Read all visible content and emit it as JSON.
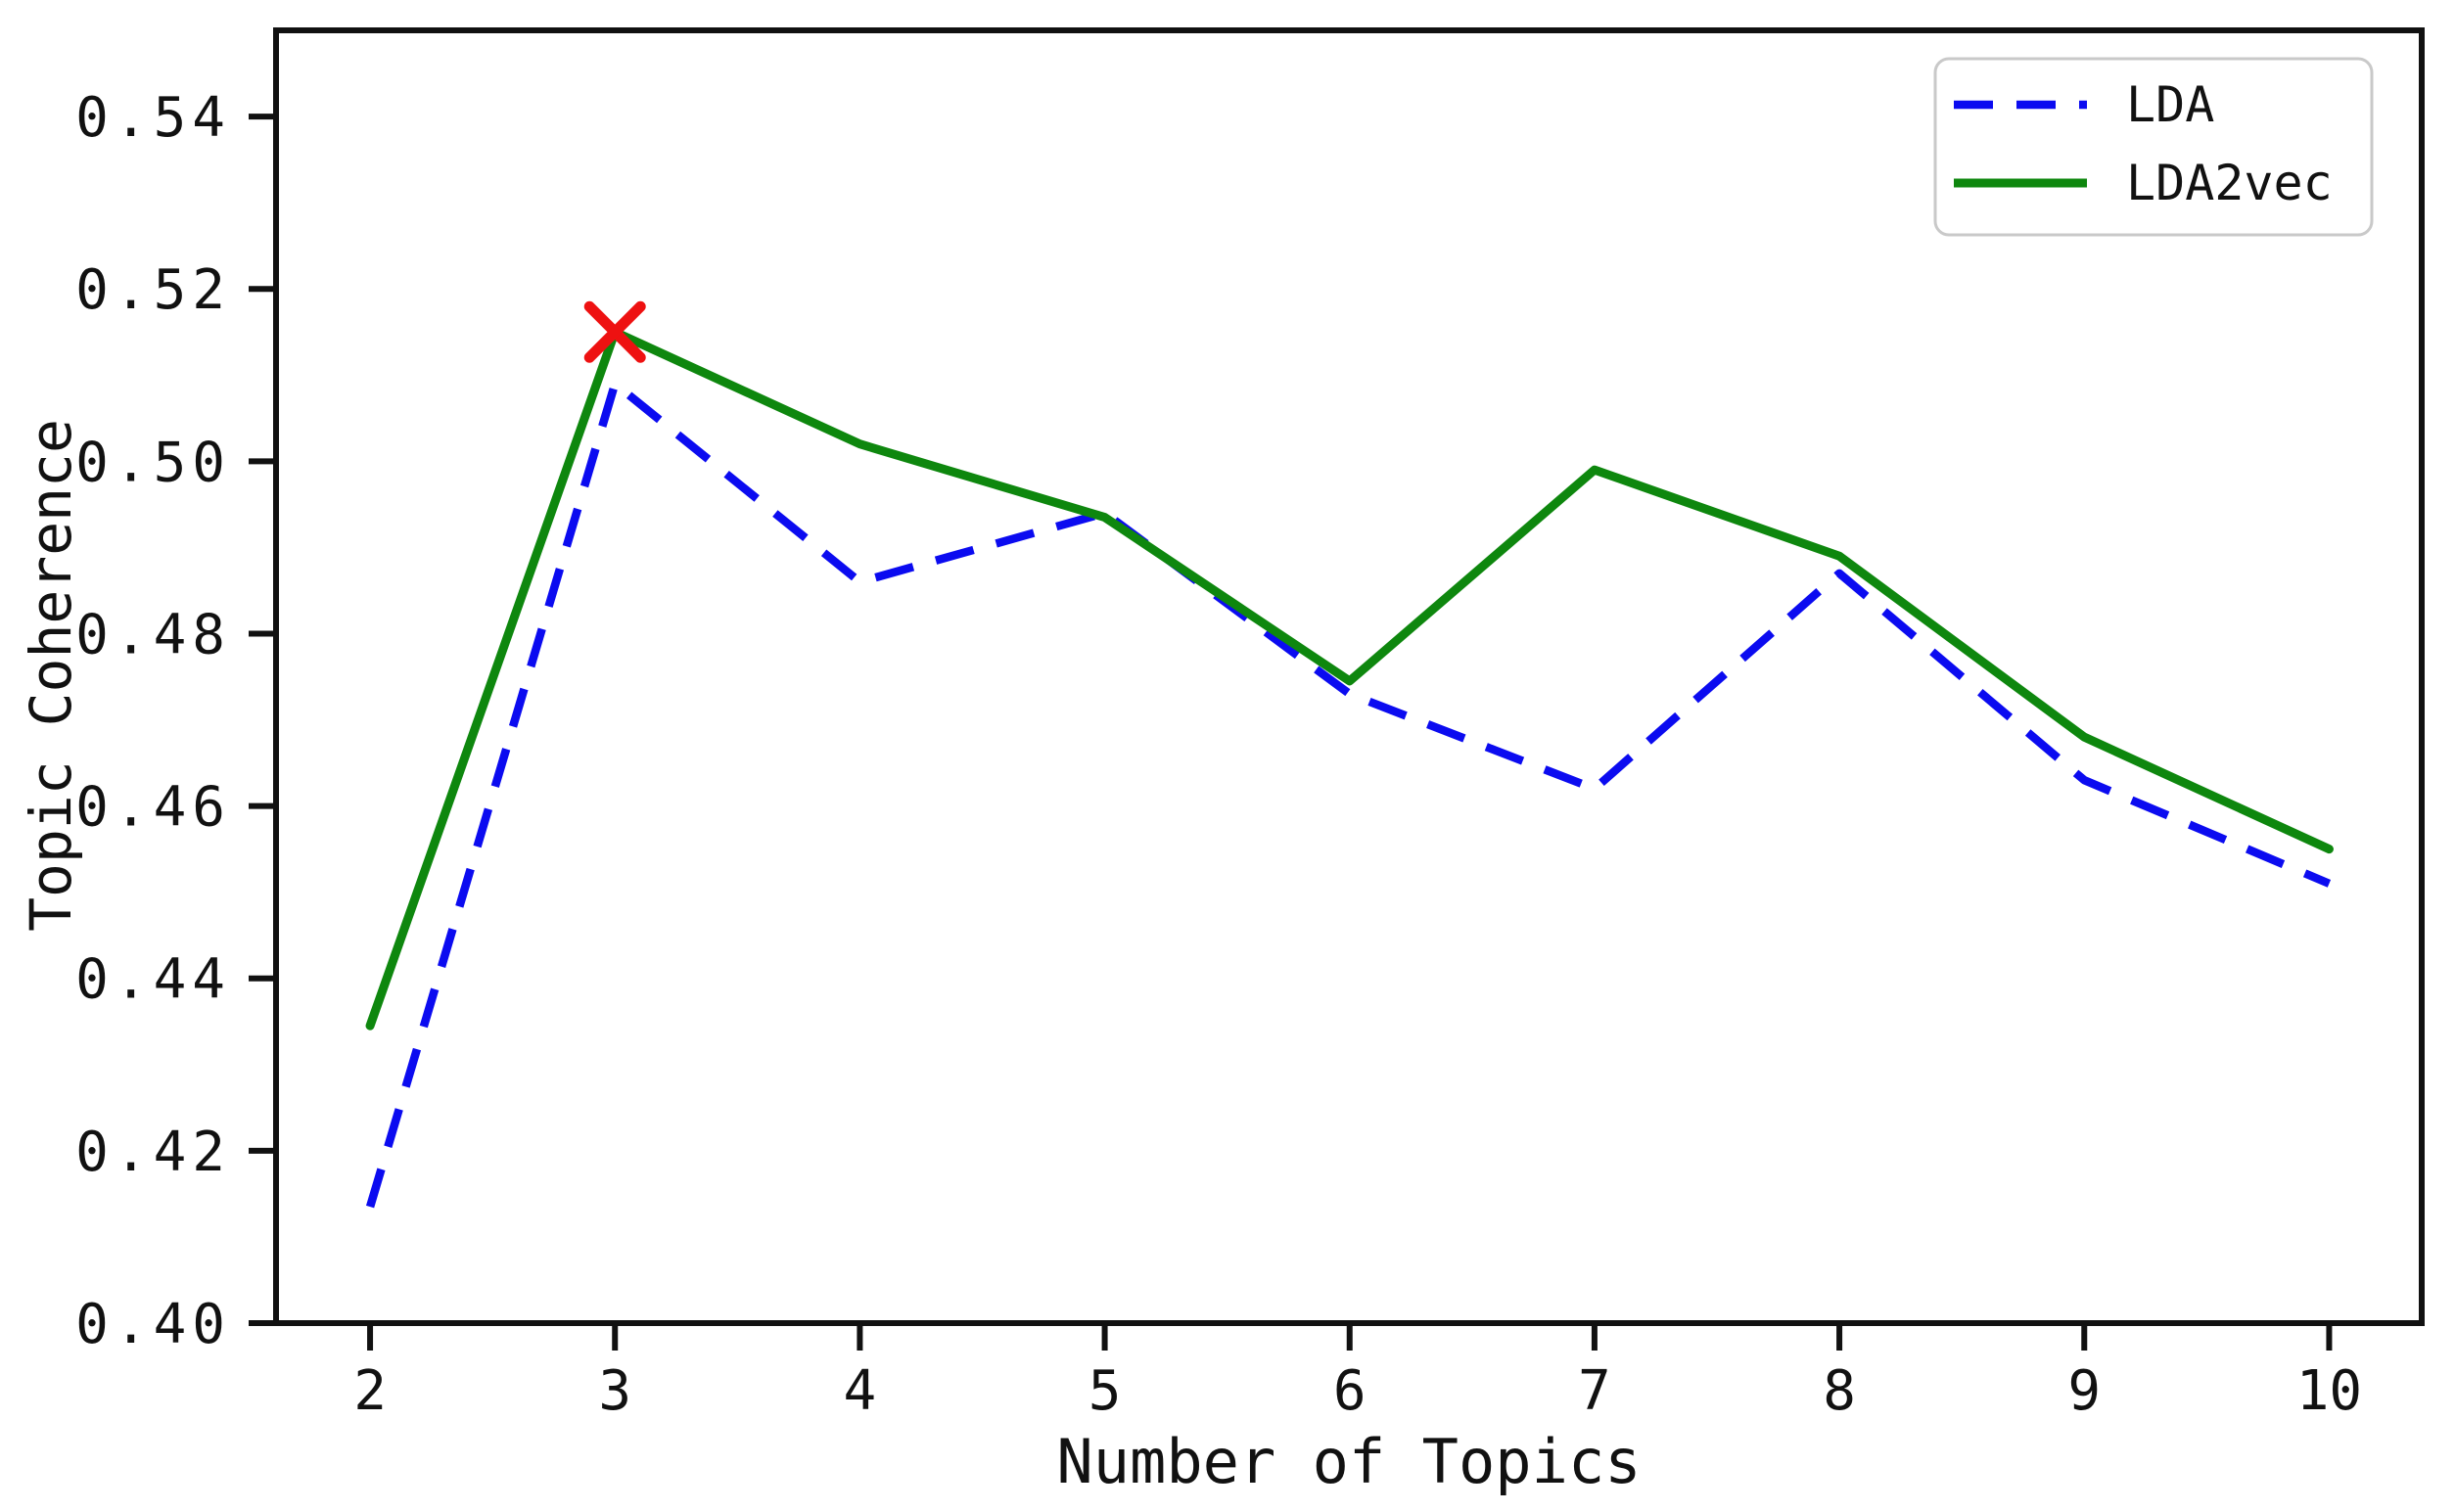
{
  "chart_data": {
    "type": "line",
    "title": "",
    "xlabel": "Number of Topics",
    "ylabel": "Topic Coherence",
    "x": [
      2,
      3,
      4,
      5,
      6,
      7,
      8,
      9,
      10
    ],
    "series": [
      {
        "name": "LDA",
        "style": "dashed",
        "color": "#0b0bf0",
        "values": [
          0.4135,
          0.509,
          0.486,
          0.494,
          0.473,
          0.462,
          0.487,
          0.463,
          0.451
        ]
      },
      {
        "name": "LDA2vec",
        "style": "solid",
        "color": "#0e870e",
        "values": [
          0.4345,
          0.515,
          0.502,
          0.4935,
          0.4745,
          0.499,
          0.489,
          0.468,
          0.455
        ]
      }
    ],
    "annotations": [
      {
        "type": "x-marker",
        "series": "LDA2vec",
        "x": 3,
        "y": 0.515,
        "color": "#ee1111",
        "meaning": "maximum topic coherence point"
      }
    ],
    "xticks": [
      2,
      3,
      4,
      5,
      6,
      7,
      8,
      9,
      10
    ],
    "xtick_labels": [
      "2",
      "3",
      "4",
      "5",
      "6",
      "7",
      "8",
      "9",
      "10"
    ],
    "yticks": [
      0.4,
      0.42,
      0.44,
      0.46,
      0.48,
      0.5,
      0.52,
      0.54
    ],
    "ytick_labels": [
      "0.40",
      "0.42",
      "0.44",
      "0.46",
      "0.48",
      "0.50",
      "0.52",
      "0.54"
    ],
    "xlim": [
      1.616,
      10.378
    ],
    "ylim": [
      0.4,
      0.55
    ],
    "grid": false,
    "legend": {
      "position": "upper right",
      "entries": [
        "LDA",
        "LDA2vec"
      ],
      "border_color": "#c9c9c9"
    },
    "axis_color": "#111111",
    "background_color": "#ffffff"
  }
}
